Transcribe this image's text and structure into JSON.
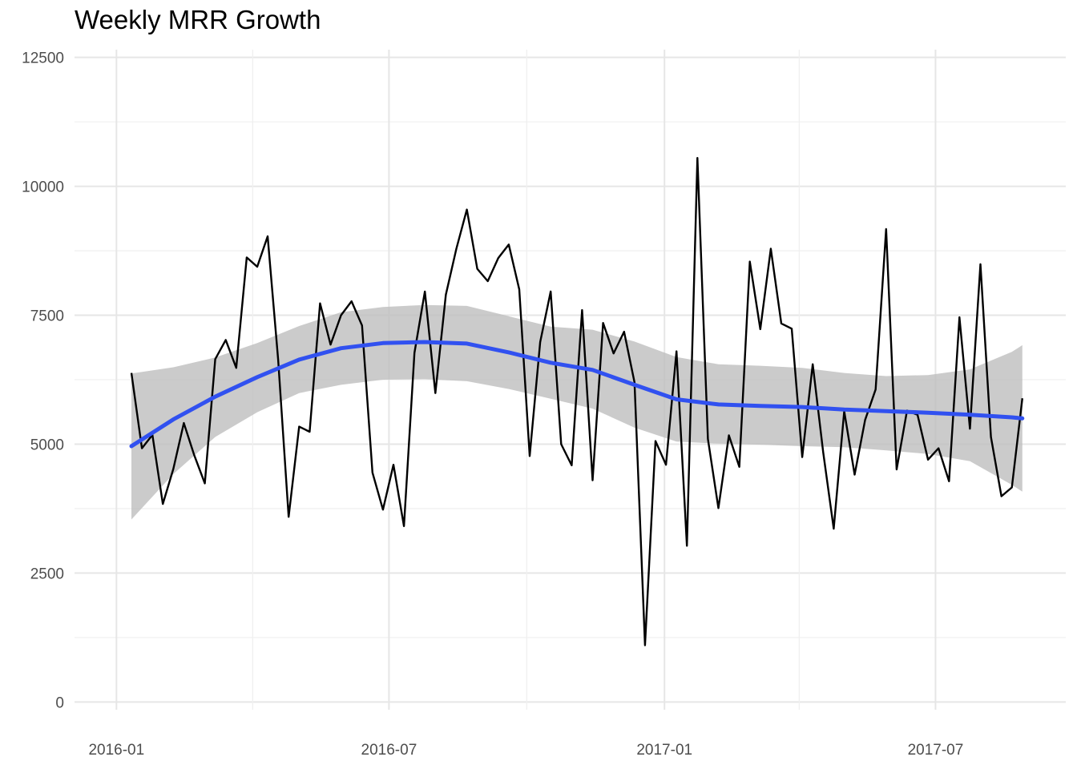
{
  "chart_data": {
    "type": "line",
    "title": "Weekly MRR Growth",
    "xlabel": "",
    "ylabel": "",
    "ylim": [
      -150,
      12650
    ],
    "xlim": [
      "2015-12-04",
      "2017-09-26"
    ],
    "x_ticks": [
      "2016-01",
      "2016-07",
      "2017-01",
      "2017-07"
    ],
    "y_ticks": [
      0,
      2500,
      5000,
      7500,
      10000,
      12500
    ],
    "grid": true,
    "legend": "none",
    "colors": {
      "series": "#000000",
      "smooth": "#3151f0",
      "band": "#bdbdbd",
      "grid_major": "#e6e6e6",
      "grid_minor": "#f0f0f0"
    },
    "series": [
      {
        "values": [
          {
            "x": "2016-01-11",
            "y": 6380
          },
          {
            "x": "2016-01-18",
            "y": 4920
          },
          {
            "x": "2016-01-25",
            "y": 5180
          },
          {
            "x": "2016-02-01",
            "y": 3840
          },
          {
            "x": "2016-02-08",
            "y": 4520
          },
          {
            "x": "2016-02-15",
            "y": 5410
          },
          {
            "x": "2016-02-22",
            "y": 4780
          },
          {
            "x": "2016-02-29",
            "y": 4240
          },
          {
            "x": "2016-03-07",
            "y": 6650
          },
          {
            "x": "2016-03-14",
            "y": 7020
          },
          {
            "x": "2016-03-21",
            "y": 6480
          },
          {
            "x": "2016-03-28",
            "y": 8620
          },
          {
            "x": "2016-04-04",
            "y": 8440
          },
          {
            "x": "2016-04-11",
            "y": 9030
          },
          {
            "x": "2016-04-18",
            "y": 6640
          },
          {
            "x": "2016-04-25",
            "y": 3590
          },
          {
            "x": "2016-05-02",
            "y": 5340
          },
          {
            "x": "2016-05-09",
            "y": 5240
          },
          {
            "x": "2016-05-16",
            "y": 7730
          },
          {
            "x": "2016-05-23",
            "y": 6930
          },
          {
            "x": "2016-05-30",
            "y": 7500
          },
          {
            "x": "2016-06-06",
            "y": 7770
          },
          {
            "x": "2016-06-13",
            "y": 7300
          },
          {
            "x": "2016-06-20",
            "y": 4450
          },
          {
            "x": "2016-06-27",
            "y": 3730
          },
          {
            "x": "2016-07-04",
            "y": 4600
          },
          {
            "x": "2016-07-11",
            "y": 3410
          },
          {
            "x": "2016-07-18",
            "y": 6770
          },
          {
            "x": "2016-07-25",
            "y": 7960
          },
          {
            "x": "2016-08-01",
            "y": 5990
          },
          {
            "x": "2016-08-08",
            "y": 7900
          },
          {
            "x": "2016-08-15",
            "y": 8790
          },
          {
            "x": "2016-08-22",
            "y": 9550
          },
          {
            "x": "2016-08-29",
            "y": 8400
          },
          {
            "x": "2016-09-05",
            "y": 8160
          },
          {
            "x": "2016-09-12",
            "y": 8610
          },
          {
            "x": "2016-09-19",
            "y": 8870
          },
          {
            "x": "2016-09-26",
            "y": 8000
          },
          {
            "x": "2016-10-03",
            "y": 4770
          },
          {
            "x": "2016-10-10",
            "y": 6980
          },
          {
            "x": "2016-10-17",
            "y": 7960
          },
          {
            "x": "2016-10-24",
            "y": 5000
          },
          {
            "x": "2016-10-31",
            "y": 4590
          },
          {
            "x": "2016-11-07",
            "y": 7600
          },
          {
            "x": "2016-11-14",
            "y": 4300
          },
          {
            "x": "2016-11-21",
            "y": 7350
          },
          {
            "x": "2016-11-28",
            "y": 6760
          },
          {
            "x": "2016-12-05",
            "y": 7180
          },
          {
            "x": "2016-12-12",
            "y": 6200
          },
          {
            "x": "2016-12-19",
            "y": 1100
          },
          {
            "x": "2016-12-26",
            "y": 5060
          },
          {
            "x": "2017-01-02",
            "y": 4600
          },
          {
            "x": "2017-01-09",
            "y": 6800
          },
          {
            "x": "2017-01-16",
            "y": 3030
          },
          {
            "x": "2017-01-23",
            "y": 10550
          },
          {
            "x": "2017-01-30",
            "y": 5100
          },
          {
            "x": "2017-02-06",
            "y": 3760
          },
          {
            "x": "2017-02-13",
            "y": 5170
          },
          {
            "x": "2017-02-20",
            "y": 4560
          },
          {
            "x": "2017-02-27",
            "y": 8540
          },
          {
            "x": "2017-03-06",
            "y": 7230
          },
          {
            "x": "2017-03-13",
            "y": 8790
          },
          {
            "x": "2017-03-20",
            "y": 7340
          },
          {
            "x": "2017-03-27",
            "y": 7240
          },
          {
            "x": "2017-04-03",
            "y": 4750
          },
          {
            "x": "2017-04-10",
            "y": 6550
          },
          {
            "x": "2017-04-17",
            "y": 4840
          },
          {
            "x": "2017-04-24",
            "y": 3360
          },
          {
            "x": "2017-05-01",
            "y": 5640
          },
          {
            "x": "2017-05-08",
            "y": 4410
          },
          {
            "x": "2017-05-15",
            "y": 5470
          },
          {
            "x": "2017-05-22",
            "y": 6060
          },
          {
            "x": "2017-05-29",
            "y": 9170
          },
          {
            "x": "2017-06-05",
            "y": 4510
          },
          {
            "x": "2017-06-12",
            "y": 5650
          },
          {
            "x": "2017-06-19",
            "y": 5570
          },
          {
            "x": "2017-06-26",
            "y": 4700
          },
          {
            "x": "2017-07-03",
            "y": 4920
          },
          {
            "x": "2017-07-10",
            "y": 4280
          },
          {
            "x": "2017-07-17",
            "y": 7460
          },
          {
            "x": "2017-07-24",
            "y": 5300
          },
          {
            "x": "2017-07-31",
            "y": 8490
          },
          {
            "x": "2017-08-07",
            "y": 5140
          },
          {
            "x": "2017-08-14",
            "y": 3990
          },
          {
            "x": "2017-08-21",
            "y": 4160
          },
          {
            "x": "2017-08-28",
            "y": 5890
          }
        ]
      }
    ],
    "smooth": {
      "values": [
        {
          "x": "2016-01-11",
          "y": 4960
        },
        {
          "x": "2016-02-08",
          "y": 5480
        },
        {
          "x": "2016-03-07",
          "y": 5920
        },
        {
          "x": "2016-04-04",
          "y": 6300
        },
        {
          "x": "2016-05-02",
          "y": 6640
        },
        {
          "x": "2016-05-30",
          "y": 6860
        },
        {
          "x": "2016-06-27",
          "y": 6960
        },
        {
          "x": "2016-07-25",
          "y": 6980
        },
        {
          "x": "2016-08-22",
          "y": 6950
        },
        {
          "x": "2016-09-19",
          "y": 6780
        },
        {
          "x": "2016-10-17",
          "y": 6580
        },
        {
          "x": "2016-11-14",
          "y": 6440
        },
        {
          "x": "2016-12-12",
          "y": 6150
        },
        {
          "x": "2017-01-09",
          "y": 5870
        },
        {
          "x": "2017-02-06",
          "y": 5770
        },
        {
          "x": "2017-03-06",
          "y": 5740
        },
        {
          "x": "2017-04-03",
          "y": 5720
        },
        {
          "x": "2017-05-01",
          "y": 5670
        },
        {
          "x": "2017-05-29",
          "y": 5640
        },
        {
          "x": "2017-06-26",
          "y": 5610
        },
        {
          "x": "2017-07-24",
          "y": 5570
        },
        {
          "x": "2017-08-21",
          "y": 5520
        },
        {
          "x": "2017-08-28",
          "y": 5500
        }
      ],
      "ci_upper": [
        6370,
        6490,
        6680,
        6960,
        7290,
        7560,
        7660,
        7700,
        7680,
        7480,
        7280,
        7220,
        6990,
        6690,
        6550,
        6520,
        6480,
        6380,
        6320,
        6340,
        6450,
        6790,
        6920
      ],
      "ci_lower": [
        3540,
        4420,
        5140,
        5620,
        5990,
        6150,
        6250,
        6260,
        6220,
        6070,
        5880,
        5690,
        5320,
        5050,
        5010,
        4990,
        4960,
        4940,
        4880,
        4810,
        4670,
        4210,
        4080
      ]
    }
  }
}
